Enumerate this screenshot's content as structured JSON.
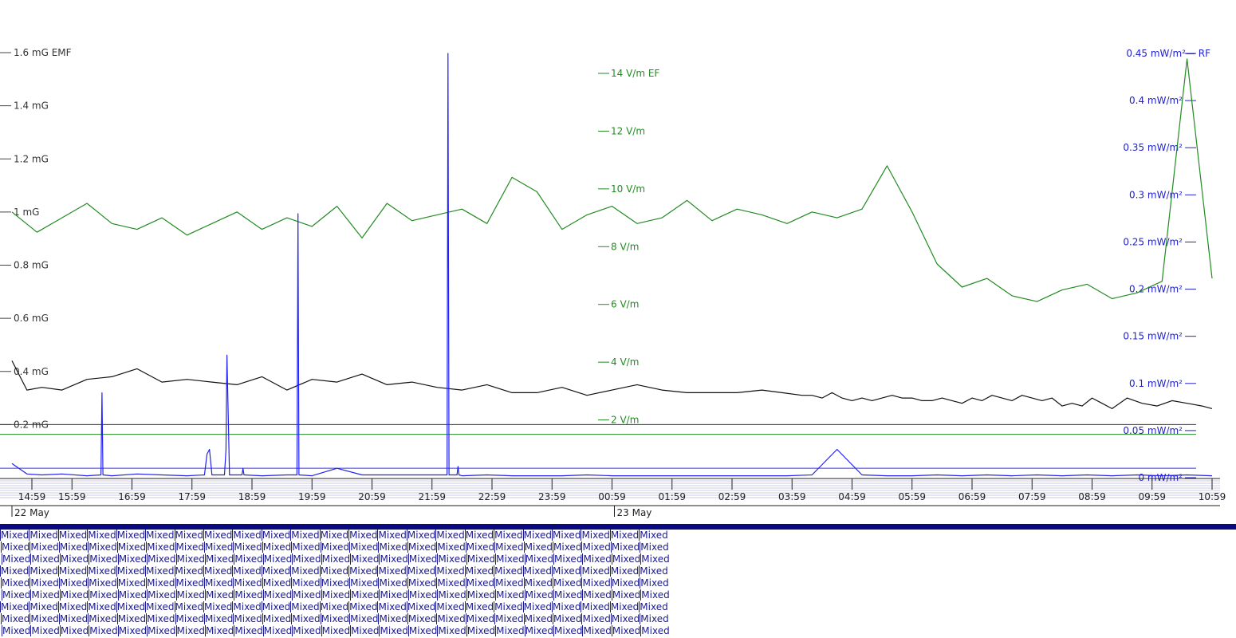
{
  "chart_data": {
    "type": "line",
    "x_range": [
      "14:59",
      "10:59"
    ],
    "x_ticks": [
      "14:59",
      "15:59",
      "16:59",
      "17:59",
      "18:59",
      "19:59",
      "20:59",
      "21:59",
      "22:59",
      "23:59",
      "00:59",
      "01:59",
      "02:59",
      "03:59",
      "04:59",
      "05:59",
      "06:59",
      "07:59",
      "08:59",
      "09:59",
      "10:59"
    ],
    "date_labels": [
      {
        "text": "22 May",
        "at_tick": 0
      },
      {
        "text": "23 May",
        "at_tick": 10
      }
    ],
    "axes": {
      "emf": {
        "unit": "mG",
        "min": 0,
        "max": 1.6,
        "ticks": [
          {
            "v": 1.6,
            "label": "1.6 mG EMF"
          },
          {
            "v": 1.4,
            "label": "1.4 mG"
          },
          {
            "v": 1.2,
            "label": "1.2 mG"
          },
          {
            "v": 1.0,
            "label": "1 mG"
          },
          {
            "v": 0.8,
            "label": "0.8 mG"
          },
          {
            "v": 0.6,
            "label": "0.6 mG"
          },
          {
            "v": 0.4,
            "label": "0.4 mG"
          },
          {
            "v": 0.2,
            "label": "0.2 mG"
          }
        ]
      },
      "ef": {
        "unit": "V/m",
        "min": 0,
        "max": 14,
        "ticks": [
          {
            "v": 14,
            "label": "14 V/m EF"
          },
          {
            "v": 12,
            "label": "12 V/m"
          },
          {
            "v": 10,
            "label": "10 V/m"
          },
          {
            "v": 8,
            "label": "8 V/m"
          },
          {
            "v": 6,
            "label": "6 V/m"
          },
          {
            "v": 4,
            "label": "4 V/m"
          },
          {
            "v": 2,
            "label": "2 V/m"
          }
        ]
      },
      "rf": {
        "unit": "mW/m²",
        "min": 0,
        "max": 0.45,
        "ticks": [
          {
            "v": 0.45,
            "label": "0.45 mW/m²— RF"
          },
          {
            "v": 0.4,
            "label": "0.4 mW/m²"
          },
          {
            "v": 0.35,
            "label": "0.35 mW/m²"
          },
          {
            "v": 0.3,
            "label": "0.3 mW/m²"
          },
          {
            "v": 0.25,
            "label": "0.25 mW/m²"
          },
          {
            "v": 0.2,
            "label": "0.2 mW/m²"
          },
          {
            "v": 0.15,
            "label": "0.15 mW/m²"
          },
          {
            "v": 0.1,
            "label": "0.1 mW/m²"
          },
          {
            "v": 0.05,
            "label": "0.05 mW/m²"
          },
          {
            "v": 0,
            "label": "0 mW/m²"
          }
        ]
      }
    },
    "thresholds": [
      {
        "axis": "emf",
        "value": 0.2,
        "color": "#333333"
      },
      {
        "axis": "ef",
        "value": 1.5,
        "color": "#228b22"
      },
      {
        "axis": "rf",
        "value": 0.01,
        "color": "#3333ff"
      }
    ],
    "series": [
      {
        "axis": "emf",
        "color": "#111111",
        "x": [
          0,
          0.3,
          0.6,
          1,
          1.5,
          2,
          2.5,
          3,
          3.5,
          4,
          4.5,
          5,
          5.5,
          6,
          6.5,
          7,
          7.5,
          8,
          8.5,
          9,
          9.5,
          10,
          10.5,
          11,
          11.5,
          12,
          12.5,
          13,
          13.5,
          14,
          14.5,
          15,
          15.4,
          15.8,
          16,
          16.2,
          16.4,
          16.6,
          16.8,
          17,
          17.2,
          17.4,
          17.6,
          17.8,
          18,
          18.2,
          18.4,
          18.6,
          18.8,
          19,
          19.2,
          19.4,
          19.6,
          19.8,
          20,
          20.2,
          20.4,
          20.6,
          20.8,
          21,
          21.2,
          21.4,
          21.6,
          21.8,
          22,
          22.3,
          22.6,
          22.9,
          23.2,
          23.5,
          23.8,
          24
        ],
        "y": [
          0.44,
          0.33,
          0.34,
          0.33,
          0.37,
          0.38,
          0.41,
          0.36,
          0.37,
          0.36,
          0.35,
          0.38,
          0.33,
          0.37,
          0.36,
          0.39,
          0.35,
          0.36,
          0.34,
          0.33,
          0.35,
          0.32,
          0.32,
          0.34,
          0.31,
          0.33,
          0.35,
          0.33,
          0.32,
          0.32,
          0.32,
          0.33,
          0.32,
          0.31,
          0.31,
          0.3,
          0.32,
          0.3,
          0.29,
          0.3,
          0.29,
          0.3,
          0.31,
          0.3,
          0.3,
          0.29,
          0.29,
          0.3,
          0.29,
          0.28,
          0.3,
          0.29,
          0.31,
          0.3,
          0.29,
          0.31,
          0.3,
          0.29,
          0.3,
          0.27,
          0.28,
          0.27,
          0.3,
          0.28,
          0.26,
          0.3,
          0.28,
          0.27,
          0.29,
          0.28,
          0.27,
          0.26
        ]
      },
      {
        "axis": "ef",
        "color": "#228b22",
        "x": [
          0,
          0.5,
          1,
          1.5,
          2,
          2.5,
          3,
          3.5,
          4,
          4.5,
          5,
          5.5,
          6,
          6.5,
          7,
          7.5,
          8,
          8.5,
          9,
          9.5,
          10,
          10.5,
          11,
          11.5,
          12,
          12.5,
          13,
          13.5,
          14,
          14.5,
          15,
          15.5,
          16,
          16.5,
          17,
          17.5,
          18,
          18.5,
          19,
          19.5,
          20,
          20.5,
          21,
          21.5,
          22,
          22.5,
          23,
          23.5,
          24
        ],
        "y": [
          9.2,
          8.5,
          9,
          9.5,
          8.8,
          8.6,
          9,
          8.4,
          8.8,
          9.2,
          8.6,
          9,
          8.7,
          9.4,
          8.3,
          9.5,
          8.9,
          9.1,
          9.3,
          8.8,
          10.4,
          9.9,
          8.6,
          9.1,
          9.4,
          8.8,
          9,
          9.6,
          8.9,
          9.3,
          9.1,
          8.8,
          9.2,
          9,
          9.3,
          10.8,
          9.2,
          7.4,
          6.6,
          6.9,
          6.3,
          6.1,
          6.5,
          6.7,
          6.2,
          6.4,
          6.8,
          14.5,
          6.9
        ]
      },
      {
        "axis": "rf",
        "color": "#2222ee",
        "x": [
          0,
          0.3,
          0.6,
          1,
          1.5,
          1.78,
          1.8,
          1.82,
          2,
          2.5,
          3,
          3.5,
          3.85,
          3.9,
          3.95,
          4,
          4.25,
          4.28,
          4.3,
          4.35,
          4.6,
          4.62,
          4.64,
          5,
          5.5,
          5.7,
          5.72,
          5.74,
          6,
          6.5,
          7,
          7.5,
          8,
          8.5,
          8.7,
          8.72,
          8.74,
          8.9,
          8.92,
          8.94,
          9,
          9.5,
          10,
          10.5,
          11,
          11.5,
          12,
          12.5,
          13,
          13.5,
          14,
          14.5,
          15,
          15.5,
          16,
          16.5,
          17,
          17.5,
          18,
          18.5,
          19,
          19.5,
          20,
          20.5,
          21,
          21.5,
          22,
          22.5,
          23,
          23.5,
          24
        ],
        "y": [
          0.015,
          0.004,
          0.003,
          0.004,
          0.002,
          0.003,
          0.09,
          0.003,
          0.002,
          0.004,
          0.003,
          0.002,
          0.003,
          0.025,
          0.03,
          0.003,
          0.003,
          0.03,
          0.13,
          0.003,
          0.003,
          0.01,
          0.003,
          0.002,
          0.003,
          0.003,
          0.28,
          0.003,
          0.002,
          0.01,
          0.003,
          0.003,
          0.003,
          0.003,
          0.003,
          0.45,
          0.003,
          0.003,
          0.012,
          0.003,
          0.002,
          0.003,
          0.002,
          0.002,
          0.002,
          0.003,
          0.002,
          0.002,
          0.002,
          0.002,
          0.002,
          0.002,
          0.002,
          0.002,
          0.003,
          0.03,
          0.003,
          0.002,
          0.002,
          0.003,
          0.002,
          0.003,
          0.002,
          0.003,
          0.002,
          0.003,
          0.002,
          0.003,
          0.002,
          0.003,
          0.002
        ]
      }
    ]
  },
  "mixed_text": "Mixed"
}
